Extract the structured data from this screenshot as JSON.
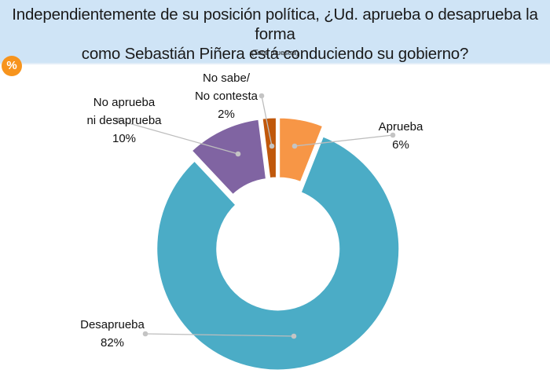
{
  "header": {
    "title_line1": "Independientemente de su posición política, ¿Ud. aprueba o desaprueba la forma",
    "title_line2": "como Sebastián Piñera está conduciendo su gobierno?",
    "subtitle": "(Total muestra)",
    "badge": "%"
  },
  "chart_data": {
    "type": "pie",
    "variant": "donut",
    "title": "Independientemente de su posición política, ¿Ud. aprueba o desaprueba la forma como Sebastián Piñera está conduciendo su gobierno?",
    "subtitle": "(Total muestra)",
    "unit": "%",
    "start": "12 o'clock, clockwise",
    "slices": [
      {
        "label": "Aprueba",
        "label_lines": [
          "Aprueba"
        ],
        "value": 6,
        "value_label": "6%",
        "color": "#f79646"
      },
      {
        "label": "Desaprueba",
        "label_lines": [
          "Desaprueba"
        ],
        "value": 82,
        "value_label": "82%",
        "color": "#4bacc6"
      },
      {
        "label": "No aprueba ni desaprueba",
        "label_lines": [
          "No aprueba",
          "ni desaprueba"
        ],
        "value": 10,
        "value_label": "10%",
        "color": "#8064a2"
      },
      {
        "label": "No sabe/ No contesta",
        "label_lines": [
          "No sabe/",
          "No contesta"
        ],
        "value": 2,
        "value_label": "2%",
        "color": "#c0580b"
      }
    ]
  }
}
